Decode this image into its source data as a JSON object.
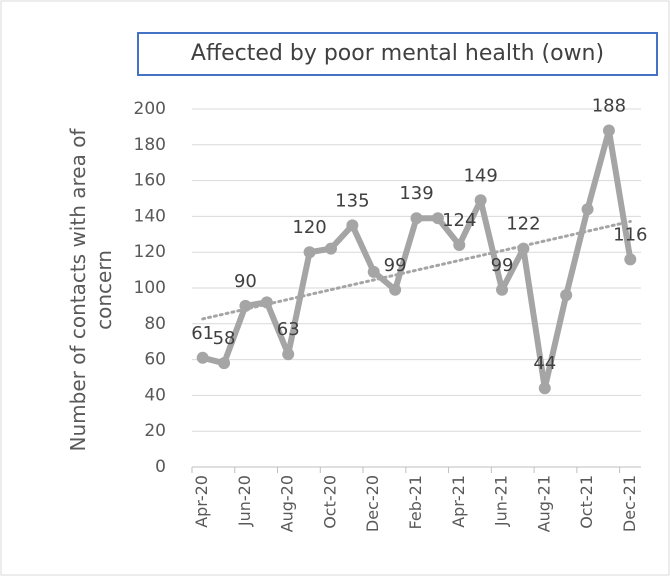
{
  "chart_data": {
    "type": "line",
    "title": "Affected by poor mental health (own)",
    "y_label": "Number of contacts with area of concern",
    "categories": [
      "Apr-20",
      null,
      "Jun-20",
      null,
      "Aug-20",
      null,
      "Oct-20",
      null,
      "Dec-20",
      null,
      "Feb-21",
      null,
      "Apr-21",
      null,
      "Jun-21",
      null,
      "Aug-21",
      null,
      "Oct-21",
      null,
      "Dec-21"
    ],
    "series": [
      {
        "name": "Affected by poor mental health (own)",
        "color": "#a5a5a5",
        "values": [
          61,
          58,
          90,
          92,
          63,
          120,
          122,
          135,
          109,
          99,
          139,
          139,
          124,
          149,
          99,
          122,
          44,
          96,
          144,
          188,
          116
        ],
        "value_labels": [
          "61",
          "58",
          "90",
          null,
          "63",
          "120",
          null,
          "135",
          null,
          "99",
          "139",
          null,
          "124",
          "149",
          "99",
          "122",
          "44",
          null,
          null,
          "188",
          "116"
        ]
      }
    ],
    "trendline": "linear",
    "ylim": [
      0,
      200
    ],
    "yticks": [
      0,
      20,
      40,
      60,
      80,
      100,
      120,
      140,
      160,
      180,
      200
    ],
    "grid": true
  }
}
